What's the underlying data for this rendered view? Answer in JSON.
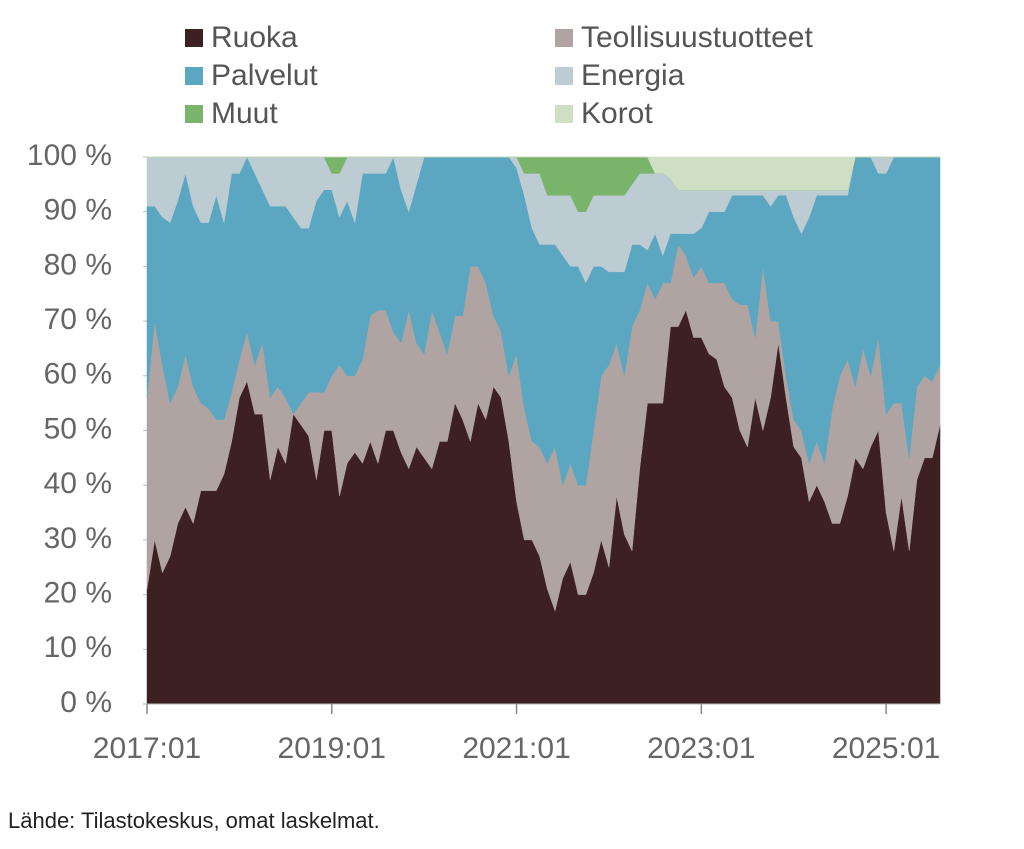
{
  "chart_data": {
    "type": "stacked-area",
    "source": "Lähde: Tilastokeskus, omat laskelmat.",
    "legend": "top",
    "categories": [
      "2017:01",
      null,
      null,
      null,
      null,
      null,
      null,
      null,
      null,
      null,
      null,
      null,
      null,
      null,
      null,
      null,
      null,
      null,
      null,
      null,
      null,
      null,
      null,
      null,
      "2019:01",
      null,
      null,
      null,
      null,
      null,
      null,
      null,
      null,
      null,
      null,
      null,
      null,
      null,
      null,
      null,
      null,
      null,
      null,
      null,
      null,
      null,
      null,
      null,
      "2021:01",
      null,
      null,
      null,
      null,
      null,
      null,
      null,
      null,
      null,
      null,
      null,
      null,
      null,
      null,
      null,
      null,
      null,
      null,
      null,
      null,
      null,
      null,
      null,
      "2023:01",
      null,
      null,
      null,
      null,
      null,
      null,
      null,
      null,
      null,
      null,
      null,
      null,
      null,
      null,
      null,
      null,
      null,
      null,
      null,
      null,
      null,
      null,
      null,
      "2025:01",
      null,
      null,
      null,
      null,
      null,
      null,
      null
    ],
    "ylim": [
      0,
      100
    ],
    "yticks": [
      {
        "value": 0,
        "label": "0 %"
      },
      {
        "value": 10,
        "label": "10 %"
      },
      {
        "value": 20,
        "label": "20 %"
      },
      {
        "value": 30,
        "label": "30 %"
      },
      {
        "value": 40,
        "label": "40 %"
      },
      {
        "value": 50,
        "label": "50 %"
      },
      {
        "value": 60,
        "label": "60 %"
      },
      {
        "value": 70,
        "label": "70 %"
      },
      {
        "value": 80,
        "label": "80 %"
      },
      {
        "value": 90,
        "label": "90 %"
      },
      {
        "value": 100,
        "label": "100 %"
      }
    ],
    "series": [
      {
        "name": "Ruoka",
        "color": "#3d2022",
        "values": [
          21,
          30,
          24,
          27,
          33,
          36,
          33,
          39,
          39,
          39,
          42,
          48,
          56,
          59,
          53,
          53,
          41,
          47,
          44,
          53,
          51,
          49,
          41,
          50,
          50,
          38,
          44,
          46,
          44,
          48,
          44,
          50,
          50,
          46,
          43,
          47,
          45,
          43,
          48,
          48,
          55,
          52,
          48,
          55,
          52,
          58,
          56,
          48,
          37,
          30,
          30,
          27,
          21,
          17,
          23,
          26,
          20,
          20,
          24,
          30,
          25,
          38,
          31,
          28,
          43,
          55,
          55,
          55,
          69,
          69,
          72,
          67,
          67,
          64,
          63,
          58,
          56,
          50,
          47,
          56,
          50,
          56,
          66,
          56,
          47,
          45,
          37,
          40,
          37,
          33,
          33,
          38,
          45,
          43,
          47,
          50,
          35,
          28,
          38,
          28,
          41,
          45,
          45,
          51
        ]
      },
      {
        "name": "Teollisuustuotteet",
        "color": "#b0a4a2",
        "values": [
          35,
          40,
          38,
          28,
          25,
          28,
          25,
          16,
          15,
          13,
          10,
          9,
          7,
          9,
          9,
          13,
          15,
          11,
          12,
          0,
          4,
          8,
          16,
          7,
          10,
          24,
          16,
          14,
          19,
          23,
          28,
          22,
          18,
          20,
          29,
          19,
          19,
          29,
          20,
          16,
          16,
          19,
          32,
          25,
          25,
          13,
          12,
          12,
          27,
          24,
          18,
          20,
          23,
          30,
          17,
          18,
          20,
          20,
          26,
          30,
          37,
          28,
          29,
          41,
          29,
          22,
          19,
          22,
          8,
          15,
          10,
          11,
          13,
          13,
          14,
          19,
          18,
          23,
          26,
          11,
          30,
          14,
          4,
          4,
          5,
          5,
          7,
          8,
          7,
          21,
          27,
          25,
          13,
          22,
          13,
          17,
          18,
          27,
          17,
          17,
          17,
          15,
          14,
          11
        ]
      },
      {
        "name": "Palvelut",
        "color": "#5ba6c0",
        "values": [
          35,
          21,
          27,
          33,
          34,
          33,
          33,
          33,
          34,
          41,
          36,
          40,
          34,
          32,
          35,
          28,
          35,
          33,
          35,
          36,
          32,
          30,
          35,
          37,
          34,
          27,
          32,
          28,
          34,
          26,
          25,
          25,
          32,
          28,
          18,
          29,
          36,
          28,
          32,
          36,
          29,
          29,
          20,
          20,
          23,
          29,
          32,
          40,
          34,
          39,
          39,
          37,
          40,
          37,
          42,
          36,
          40,
          37,
          30,
          20,
          17,
          13,
          19,
          15,
          12,
          6,
          12,
          5,
          9,
          2,
          4,
          8,
          7,
          13,
          13,
          13,
          19,
          20,
          20,
          26,
          13,
          21,
          23,
          33,
          37,
          36,
          45,
          45,
          49,
          39,
          33,
          30,
          42,
          35,
          40,
          30,
          44,
          45,
          45,
          55,
          42,
          40,
          41,
          38
        ]
      },
      {
        "name": "Energia",
        "color": "#bdcbd3",
        "values": [
          9,
          9,
          11,
          12,
          8,
          3,
          9,
          12,
          12,
          7,
          12,
          3,
          3,
          0,
          3,
          6,
          9,
          9,
          9,
          11,
          13,
          13,
          8,
          6,
          3,
          8,
          8,
          12,
          3,
          3,
          3,
          3,
          0,
          6,
          10,
          5,
          0,
          0,
          0,
          0,
          0,
          0,
          0,
          0,
          0,
          0,
          0,
          0,
          2,
          4,
          10,
          13,
          9,
          9,
          11,
          13,
          10,
          13,
          13,
          13,
          14,
          14,
          14,
          11,
          13,
          14,
          11,
          15,
          10,
          8,
          8,
          8,
          7,
          4,
          4,
          4,
          1,
          1,
          1,
          1,
          1,
          3,
          1,
          1,
          5,
          8,
          5,
          1,
          1,
          1,
          1,
          1,
          0,
          0,
          0,
          3,
          3,
          0,
          0,
          0,
          0,
          0,
          0,
          0
        ]
      },
      {
        "name": "Muut",
        "color": "#7ab46a",
        "values": [
          0,
          0,
          0,
          0,
          0,
          0,
          0,
          0,
          0,
          0,
          0,
          0,
          0,
          0,
          0,
          0,
          0,
          0,
          0,
          0,
          0,
          0,
          0,
          0,
          3,
          3,
          0,
          0,
          0,
          0,
          0,
          0,
          0,
          0,
          0,
          0,
          0,
          0,
          0,
          0,
          0,
          0,
          0,
          0,
          0,
          0,
          0,
          0,
          0,
          3,
          3,
          3,
          7,
          7,
          7,
          7,
          10,
          10,
          7,
          7,
          7,
          7,
          7,
          5,
          3,
          3,
          0,
          0,
          0,
          0,
          0,
          0,
          0,
          0,
          0,
          0,
          0,
          0,
          0,
          0,
          0,
          0,
          0,
          0,
          0,
          0,
          0,
          0,
          0,
          0,
          0,
          0,
          0,
          0,
          0,
          0,
          0,
          0,
          0,
          0,
          0,
          0,
          0,
          0
        ]
      },
      {
        "name": "Korot",
        "color": "#cfdfc4",
        "values": [
          0,
          0,
          0,
          0,
          0,
          0,
          0,
          0,
          0,
          0,
          0,
          0,
          0,
          0,
          0,
          0,
          0,
          0,
          0,
          0,
          0,
          0,
          0,
          0,
          0,
          0,
          0,
          0,
          0,
          0,
          0,
          0,
          0,
          0,
          0,
          0,
          0,
          0,
          0,
          0,
          0,
          0,
          0,
          0,
          0,
          0,
          0,
          0,
          0,
          0,
          0,
          0,
          0,
          0,
          0,
          0,
          0,
          0,
          0,
          0,
          0,
          0,
          0,
          0,
          0,
          0,
          3,
          3,
          4,
          6,
          6,
          6,
          6,
          6,
          6,
          6,
          6,
          6,
          6,
          6,
          6,
          6,
          6,
          6,
          6,
          6,
          6,
          6,
          6,
          6,
          6,
          6,
          0,
          0,
          0,
          0,
          0,
          0,
          0,
          0,
          0,
          0,
          0,
          0
        ]
      }
    ]
  }
}
